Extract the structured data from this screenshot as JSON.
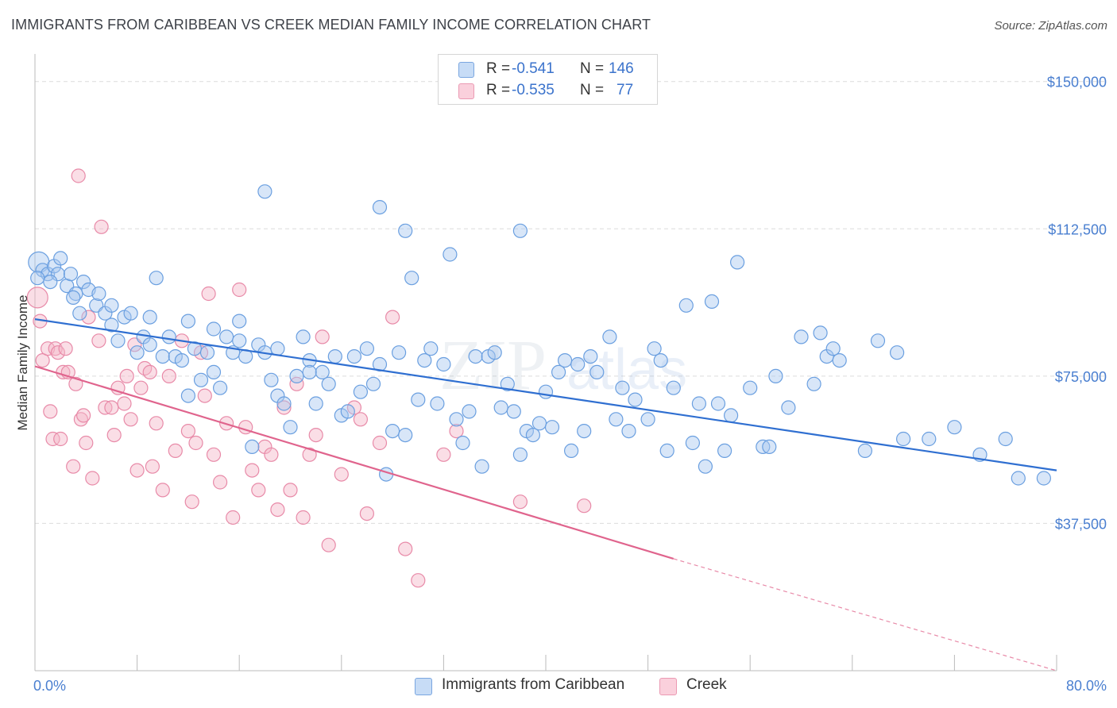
{
  "header": {
    "title": "IMMIGRANTS FROM CARIBBEAN VS CREEK MEDIAN FAMILY INCOME CORRELATION CHART",
    "source": "Source: ZipAtlas.com"
  },
  "legend": {
    "r_label": "R =",
    "n_label": "N =",
    "rows": [
      {
        "r": "-0.541",
        "n": "146",
        "color": "#a8c8f0"
      },
      {
        "r": "-0.535",
        "n": "77",
        "color": "#f5b6c8"
      }
    ]
  },
  "bottom_legend": [
    {
      "label": "Immigrants from Caribbean",
      "color": "#a8c8f0"
    },
    {
      "label": "Creek",
      "color": "#f5b6c8"
    }
  ],
  "axes": {
    "y_ticks": [
      "$150,000",
      "$112,500",
      "$75,000",
      "$37,500"
    ],
    "x_min_label": "0.0%",
    "x_max_label": "80.0%",
    "ylabel": "Median Family Income"
  },
  "chart_data": {
    "type": "scatter",
    "xlabel": "",
    "ylabel": "Median Family Income",
    "xlim": [
      0,
      80
    ],
    "ylim": [
      0,
      155000
    ],
    "grid": true,
    "legend_position": "top-center",
    "series": [
      {
        "name": "Immigrants from Caribbean",
        "color": "#6a9fe0",
        "fill": "#a8c8f0",
        "r": -0.541,
        "n": 146,
        "trend": {
          "x": [
            0,
            80
          ],
          "y": [
            89500,
            51000
          ]
        },
        "points": [
          [
            0.3,
            104000
          ],
          [
            0.6,
            102000
          ],
          [
            1,
            101000
          ],
          [
            1.5,
            103000
          ],
          [
            1.8,
            101000
          ],
          [
            2,
            105000
          ],
          [
            2.5,
            98000
          ],
          [
            2.8,
            101000
          ],
          [
            3.2,
            96000
          ],
          [
            3.5,
            91000
          ],
          [
            3.8,
            99000
          ],
          [
            4.2,
            97000
          ],
          [
            4.8,
            93000
          ],
          [
            5,
            96000
          ],
          [
            5.5,
            91000
          ],
          [
            6,
            88000
          ],
          [
            6.5,
            84000
          ],
          [
            7,
            90000
          ],
          [
            7.5,
            91000
          ],
          [
            8,
            81000
          ],
          [
            8.5,
            85000
          ],
          [
            9,
            83000
          ],
          [
            9.5,
            100000
          ],
          [
            10,
            80000
          ],
          [
            10.5,
            85000
          ],
          [
            11,
            80000
          ],
          [
            11.5,
            79000
          ],
          [
            12,
            70000
          ],
          [
            12.5,
            82000
          ],
          [
            13,
            74000
          ],
          [
            13.5,
            81000
          ],
          [
            14,
            76000
          ],
          [
            14.5,
            72000
          ],
          [
            15,
            85000
          ],
          [
            15.5,
            81000
          ],
          [
            16,
            89000
          ],
          [
            16.5,
            80000
          ],
          [
            17,
            57000
          ],
          [
            17.5,
            83000
          ],
          [
            18,
            81000
          ],
          [
            18.5,
            74000
          ],
          [
            19,
            70000
          ],
          [
            19.5,
            68000
          ],
          [
            20,
            62000
          ],
          [
            20.5,
            75000
          ],
          [
            21,
            85000
          ],
          [
            21.5,
            79000
          ],
          [
            22,
            68000
          ],
          [
            22.5,
            76000
          ],
          [
            23,
            73000
          ],
          [
            23.5,
            80000
          ],
          [
            24,
            65000
          ],
          [
            24.5,
            66000
          ],
          [
            25,
            80000
          ],
          [
            25.5,
            71000
          ],
          [
            26,
            82000
          ],
          [
            26.5,
            73000
          ],
          [
            27,
            78000
          ],
          [
            27.5,
            50000
          ],
          [
            28,
            61000
          ],
          [
            28.5,
            81000
          ],
          [
            29,
            60000
          ],
          [
            29.5,
            100000
          ],
          [
            30,
            69000
          ],
          [
            30.5,
            79000
          ],
          [
            31,
            82000
          ],
          [
            31.5,
            68000
          ],
          [
            32,
            78000
          ],
          [
            32.5,
            106000
          ],
          [
            33,
            64000
          ],
          [
            33.5,
            58000
          ],
          [
            34,
            66000
          ],
          [
            34.5,
            80000
          ],
          [
            35,
            52000
          ],
          [
            35.5,
            80000
          ],
          [
            36,
            81000
          ],
          [
            36.5,
            67000
          ],
          [
            37,
            73000
          ],
          [
            37.5,
            66000
          ],
          [
            38,
            55000
          ],
          [
            38.5,
            61000
          ],
          [
            39,
            60000
          ],
          [
            39.5,
            63000
          ],
          [
            40,
            71000
          ],
          [
            40.5,
            62000
          ],
          [
            41,
            76000
          ],
          [
            41.5,
            79000
          ],
          [
            42,
            56000
          ],
          [
            42.5,
            78000
          ],
          [
            43,
            61000
          ],
          [
            43.5,
            80000
          ],
          [
            44,
            76000
          ],
          [
            45,
            85000
          ],
          [
            45.5,
            64000
          ],
          [
            46,
            72000
          ],
          [
            46.5,
            61000
          ],
          [
            47,
            69000
          ],
          [
            48,
            64000
          ],
          [
            48.5,
            82000
          ],
          [
            49,
            79000
          ],
          [
            49.5,
            56000
          ],
          [
            50,
            72000
          ],
          [
            51,
            93000
          ],
          [
            51.5,
            58000
          ],
          [
            52,
            68000
          ],
          [
            52.5,
            52000
          ],
          [
            53,
            94000
          ],
          [
            53.5,
            68000
          ],
          [
            54,
            56000
          ],
          [
            54.5,
            65000
          ],
          [
            55,
            104000
          ],
          [
            56,
            72000
          ],
          [
            57,
            57000
          ],
          [
            57.5,
            57000
          ],
          [
            58,
            75000
          ],
          [
            59,
            67000
          ],
          [
            60,
            85000
          ],
          [
            61,
            73000
          ],
          [
            61.5,
            86000
          ],
          [
            62,
            80000
          ],
          [
            62.5,
            82000
          ],
          [
            63,
            79000
          ],
          [
            65,
            56000
          ],
          [
            66,
            84000
          ],
          [
            67.5,
            81000
          ],
          [
            68,
            59000
          ],
          [
            70,
            59000
          ],
          [
            72,
            62000
          ],
          [
            74,
            55000
          ],
          [
            76,
            59000
          ],
          [
            77,
            49000
          ],
          [
            79,
            49000
          ],
          [
            18,
            122000
          ],
          [
            27,
            118000
          ],
          [
            29,
            112000
          ],
          [
            38,
            112000
          ],
          [
            0.2,
            100000
          ],
          [
            1.2,
            99000
          ],
          [
            3,
            95000
          ],
          [
            6,
            93000
          ],
          [
            9,
            90000
          ],
          [
            12,
            89000
          ],
          [
            14,
            87000
          ],
          [
            16,
            84000
          ],
          [
            19,
            82000
          ],
          [
            21.5,
            76000
          ]
        ]
      },
      {
        "name": "Creek",
        "color": "#e88aa8",
        "fill": "#f5b6c8",
        "r": -0.535,
        "n": 77,
        "trend": {
          "x": [
            0,
            50
          ],
          "y": [
            77500,
            28500
          ]
        },
        "trend_dashed": {
          "x": [
            50,
            80
          ],
          "y": [
            28500,
            0
          ]
        },
        "points": [
          [
            0.2,
            95000
          ],
          [
            0.4,
            89000
          ],
          [
            0.6,
            79000
          ],
          [
            1,
            82000
          ],
          [
            1.2,
            66000
          ],
          [
            1.4,
            59000
          ],
          [
            1.6,
            82000
          ],
          [
            1.8,
            81000
          ],
          [
            2,
            59000
          ],
          [
            2.2,
            76000
          ],
          [
            2.4,
            82000
          ],
          [
            2.6,
            76000
          ],
          [
            3,
            52000
          ],
          [
            3.2,
            73000
          ],
          [
            3.4,
            126000
          ],
          [
            3.6,
            64000
          ],
          [
            3.8,
            65000
          ],
          [
            4,
            58000
          ],
          [
            4.2,
            90000
          ],
          [
            4.5,
            49000
          ],
          [
            5,
            84000
          ],
          [
            5.2,
            113000
          ],
          [
            5.5,
            67000
          ],
          [
            6,
            67000
          ],
          [
            6.2,
            60000
          ],
          [
            6.5,
            72000
          ],
          [
            7,
            68000
          ],
          [
            7.2,
            75000
          ],
          [
            7.5,
            64000
          ],
          [
            7.8,
            83000
          ],
          [
            8,
            51000
          ],
          [
            8.3,
            72000
          ],
          [
            8.6,
            77000
          ],
          [
            9,
            76000
          ],
          [
            9.2,
            52000
          ],
          [
            9.5,
            63000
          ],
          [
            10,
            46000
          ],
          [
            10.5,
            75000
          ],
          [
            11,
            56000
          ],
          [
            11.5,
            84000
          ],
          [
            12,
            61000
          ],
          [
            12.3,
            43000
          ],
          [
            12.6,
            58000
          ],
          [
            13,
            81000
          ],
          [
            13.3,
            70000
          ],
          [
            13.6,
            96000
          ],
          [
            14,
            55000
          ],
          [
            14.5,
            48000
          ],
          [
            15,
            63000
          ],
          [
            15.5,
            39000
          ],
          [
            16,
            97000
          ],
          [
            16.5,
            62000
          ],
          [
            17,
            51000
          ],
          [
            17.5,
            46000
          ],
          [
            18,
            57000
          ],
          [
            18.5,
            55000
          ],
          [
            19,
            41000
          ],
          [
            19.5,
            67000
          ],
          [
            20,
            46000
          ],
          [
            20.5,
            73000
          ],
          [
            21,
            39000
          ],
          [
            21.5,
            55000
          ],
          [
            22,
            60000
          ],
          [
            22.5,
            85000
          ],
          [
            23,
            32000
          ],
          [
            24,
            50000
          ],
          [
            25,
            67000
          ],
          [
            25.5,
            64000
          ],
          [
            26,
            40000
          ],
          [
            27,
            58000
          ],
          [
            28,
            90000
          ],
          [
            29,
            31000
          ],
          [
            30,
            23000
          ],
          [
            32,
            55000
          ],
          [
            33,
            61000
          ],
          [
            38,
            43000
          ],
          [
            43,
            42000
          ]
        ]
      }
    ]
  }
}
